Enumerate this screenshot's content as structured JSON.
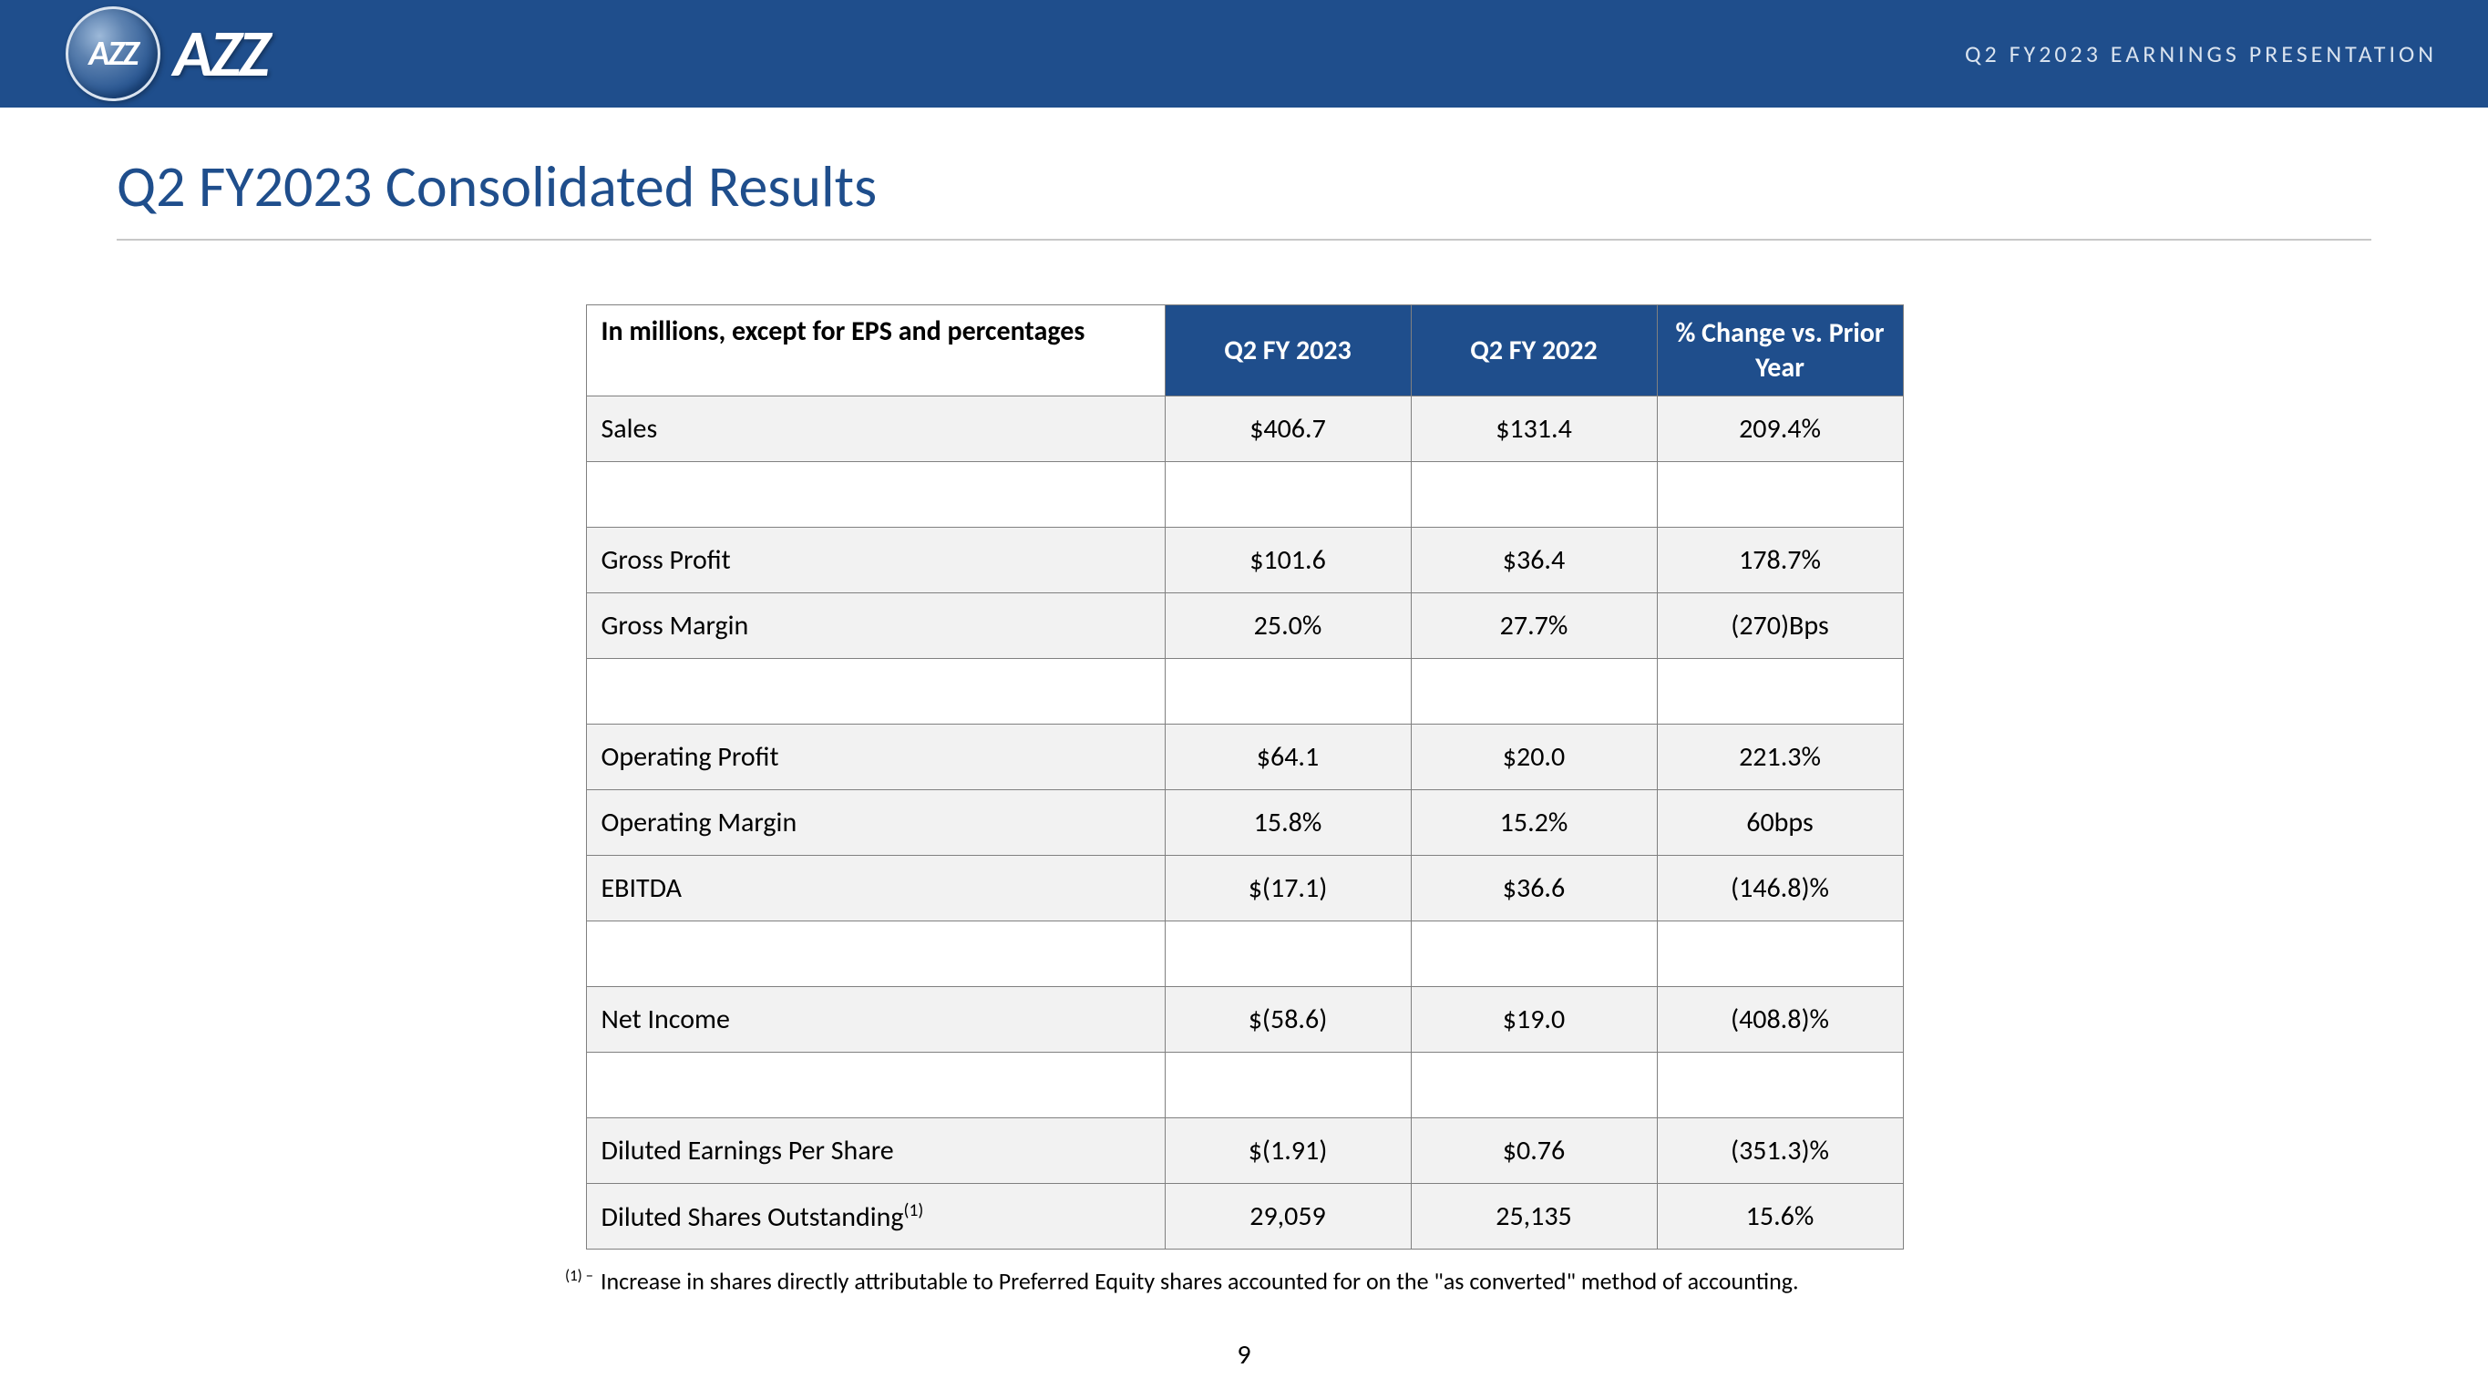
{
  "colors": {
    "brand_blue": "#1f4e8c",
    "row_fill": "#f2f2f2",
    "border": "#808080",
    "header_text": "#d9e3ef"
  },
  "header": {
    "logo_mark": "AZZ",
    "logo_text": "AZZ",
    "subtitle": "Q2 FY2023 EARNINGS PRESENTATION"
  },
  "title": "Q2 FY2023 Consolidated Results",
  "table": {
    "caption": "In millions, except for EPS and percentages",
    "columns": [
      "Q2 FY 2023",
      "Q2 FY 2022",
      "% Change vs. Prior Year"
    ],
    "rows": [
      {
        "type": "data",
        "label": "Sales",
        "v1": "$406.7",
        "v2": "$131.4",
        "v3": "209.4%"
      },
      {
        "type": "spacer"
      },
      {
        "type": "data",
        "label": "Gross Profit",
        "v1": "$101.6",
        "v2": "$36.4",
        "v3": "178.7%"
      },
      {
        "type": "data",
        "label": "Gross Margin",
        "v1": "25.0%",
        "v2": "27.7%",
        "v3": "(270)Bps"
      },
      {
        "type": "spacer"
      },
      {
        "type": "data",
        "label": "Operating Profit",
        "v1": "$64.1",
        "v2": "$20.0",
        "v3": "221.3%"
      },
      {
        "type": "data",
        "label": "Operating Margin",
        "v1": "15.8%",
        "v2": "15.2%",
        "v3": "60bps"
      },
      {
        "type": "data",
        "label": "EBITDA",
        "v1": "$(17.1)",
        "v2": "$36.6",
        "v3": "(146.8)%"
      },
      {
        "type": "spacer"
      },
      {
        "type": "data",
        "label": "Net Income",
        "v1": "$(58.6)",
        "v2": "$19.0",
        "v3": "(408.8)%"
      },
      {
        "type": "spacer"
      },
      {
        "type": "data",
        "label": "Diluted Earnings Per Share",
        "v1": "$(1.91)",
        "v2": "$0.76",
        "v3": "(351.3)%"
      },
      {
        "type": "data",
        "label": "Diluted Shares Outstanding",
        "sup": "(1)",
        "v1": "29,059",
        "v2": "25,135",
        "v3": "15.6%"
      }
    ]
  },
  "footnote": {
    "marker": "(1) –",
    "text": "Increase in shares directly attributable to Preferred Equity shares accounted for on the \"as converted\" method of accounting."
  },
  "page_number": "9"
}
